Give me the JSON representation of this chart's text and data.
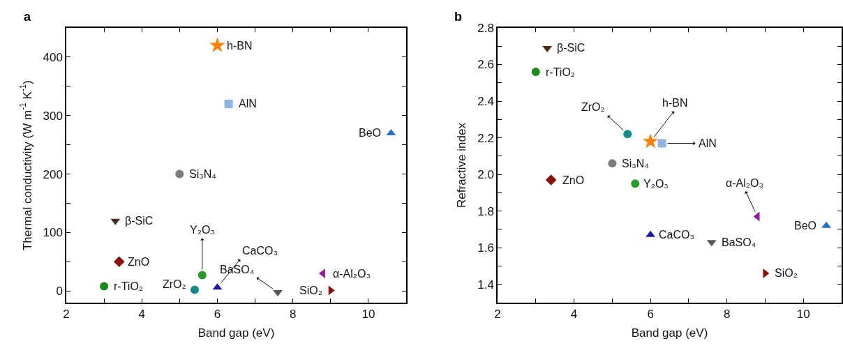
{
  "chart_data": [
    {
      "type": "scatter",
      "title": "a",
      "xlabel": "Band gap (eV)",
      "ylabel": "Thermal conductivity (W m$^{-1}$ K$^{-1}$)",
      "legend": false,
      "grid": false,
      "xlim": [
        2,
        11
      ],
      "xticks": [
        2,
        {
          "value": 3,
          "label": null
        },
        4,
        {
          "value": 5,
          "label": null
        },
        6,
        {
          "value": 7,
          "label": null
        },
        8,
        {
          "value": 9,
          "label": null
        },
        10
      ],
      "ylim": [
        -20,
        450
      ],
      "yticks": [
        0,
        {
          "value": 50,
          "label": null
        },
        100,
        {
          "value": 150,
          "label": null
        },
        200,
        {
          "value": 250,
          "label": null
        },
        300,
        {
          "value": 350,
          "label": null
        },
        400
      ],
      "series": [
        {
          "name": "h-BN",
          "color": "#ff8000",
          "marker": "star",
          "x": [
            6.0
          ],
          "values": [
            420
          ]
        },
        {
          "name": "AlN",
          "color": "#8fb4e3",
          "marker": "square",
          "x": [
            6.3
          ],
          "values": [
            320
          ]
        },
        {
          "name": "BeO",
          "color": "#2a6ec6",
          "marker": "triangle",
          "x": [
            10.6
          ],
          "values": [
            270
          ]
        },
        {
          "name": "Si₃N₄",
          "color": "#7f7a77",
          "marker": "circle",
          "x": [
            5.0
          ],
          "values": [
            200
          ]
        },
        {
          "name": "β-SiC",
          "color": "#4a2f1d",
          "marker": "triangle-down",
          "x": [
            3.3
          ],
          "values": [
            120
          ]
        },
        {
          "name": "ZnO",
          "color": "#8b1010",
          "marker": "diamond",
          "x": [
            3.4
          ],
          "values": [
            50
          ]
        },
        {
          "name": "r-TiO₂",
          "color": "#1a8a1a",
          "x": [
            3.0
          ],
          "values": [
            8
          ]
        },
        {
          "name": "Y₂O₃",
          "color": "#2a9a2a",
          "marker": "circle",
          "x": [
            5.6
          ],
          "values": [
            27
          ]
        },
        {
          "name": "ZrO₂",
          "color": "#138a8a",
          "x": [
            5.4
          ],
          "values": [
            2
          ]
        },
        {
          "name": "CaCO₃",
          "color": "#1a1aa8",
          "marker": "triangle",
          "x": [
            6.0
          ],
          "values": [
            6
          ]
        },
        {
          "name": "BaSO₄",
          "color": "#555555",
          "marker": "triangle-down",
          "x": [
            7.6
          ],
          "values": [
            -2
          ]
        },
        {
          "name": "α-Al₂O₃",
          "color": "#9a1a9a",
          "marker": "triangle-left",
          "x": [
            8.8
          ],
          "values": [
            30
          ]
        },
        {
          "name": "SiO₂",
          "color": "#8b1010",
          "marker": "triangle-right",
          "x": [
            9.0
          ],
          "values": [
            1
          ]
        }
      ]
    },
    {
      "type": "scatter",
      "title": "b",
      "xlabel": "Band gap (eV)",
      "ylabel": "Refractive index",
      "legend": false,
      "grid": false,
      "xlim": [
        2,
        11
      ],
      "xticks": [
        2,
        {
          "value": 3,
          "label": null
        },
        4,
        {
          "value": 5,
          "label": null
        },
        6,
        {
          "value": 7,
          "label": null
        },
        8,
        {
          "value": 9,
          "label": null
        },
        10
      ],
      "ylim": [
        1.3,
        2.8
      ],
      "yticks": [
        1.4,
        {
          "value": 1.5,
          "label": null
        },
        1.6,
        {
          "value": 1.7,
          "label": null
        },
        1.8,
        {
          "value": 1.9,
          "label": null
        },
        {
          "value": 2.0,
          "label": "2.0"
        },
        {
          "value": 2.1,
          "label": null
        },
        2.2,
        {
          "value": 2.3,
          "label": null
        },
        2.4,
        {
          "value": 2.5,
          "label": null
        },
        2.6,
        {
          "value": 2.7,
          "label": null
        },
        2.8
      ],
      "series": [
        {
          "name": "h-BN",
          "color": "#ff8000",
          "marker": "star",
          "x": [
            6.0
          ],
          "values": [
            2.18
          ]
        },
        {
          "name": "AlN",
          "color": "#8fb4e3",
          "marker": "square",
          "x": [
            6.3
          ],
          "values": [
            2.17
          ]
        },
        {
          "name": "BeO",
          "color": "#2a6ec6",
          "marker": "triangle",
          "x": [
            10.6
          ],
          "values": [
            1.72
          ]
        },
        {
          "name": "Si₃N₄",
          "color": "#7f7a77",
          "marker": "circle",
          "x": [
            5.0
          ],
          "values": [
            2.06
          ]
        },
        {
          "name": "β-SiC",
          "color": "#4a2f1d",
          "marker": "triangle-down",
          "x": [
            3.3
          ],
          "values": [
            2.69
          ]
        },
        {
          "name": "ZnO",
          "color": "#8b1010",
          "marker": "diamond",
          "x": [
            3.4
          ],
          "values": [
            1.97
          ]
        },
        {
          "name": "r-TiO₂",
          "color": "#1a8a1a",
          "x": [
            3.0
          ],
          "values": [
            2.56
          ]
        },
        {
          "name": "Y₂O₃",
          "color": "#2a9a2a",
          "marker": "circle",
          "x": [
            5.6
          ],
          "values": [
            1.95
          ]
        },
        {
          "name": "ZrO₂",
          "color": "#138a8a",
          "x": [
            5.4
          ],
          "values": [
            2.22
          ]
        },
        {
          "name": "CaCO₃",
          "color": "#1a1aa8",
          "marker": "triangle",
          "x": [
            6.0
          ],
          "values": [
            1.67
          ]
        },
        {
          "name": "BaSO₄",
          "color": "#555555",
          "marker": "triangle-down",
          "x": [
            7.6
          ],
          "values": [
            1.63
          ]
        },
        {
          "name": "α-Al₂O₃",
          "color": "#9a1a9a",
          "marker": "triangle-left",
          "x": [
            8.8
          ],
          "values": [
            1.77
          ]
        },
        {
          "name": "SiO₂",
          "color": "#8b1010",
          "marker": "triangle-right",
          "x": [
            9.0
          ],
          "values": [
            1.46
          ]
        }
      ]
    }
  ]
}
